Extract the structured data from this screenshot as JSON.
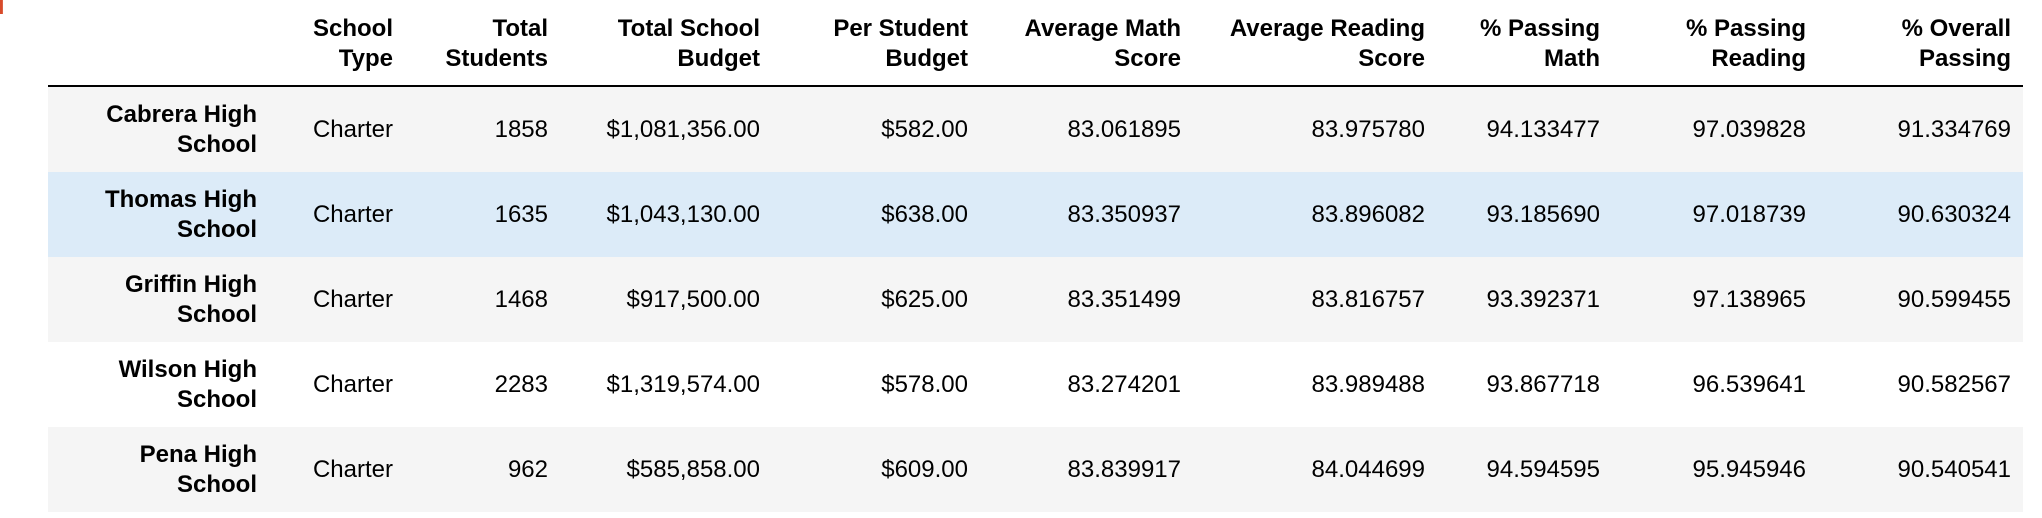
{
  "columns": [
    "",
    "School\nType",
    "Total\nStudents",
    "Total School\nBudget",
    "Per Student\nBudget",
    "Average Math\nScore",
    "Average Reading\nScore",
    "% Passing\nMath",
    "% Passing\nReading",
    "% Overall\nPassing"
  ],
  "rows": [
    {
      "school": "Cabrera High\nSchool",
      "type": "Charter",
      "total_students": "1858",
      "total_budget": "$1,081,356.00",
      "per_student_budget": "$582.00",
      "avg_math": "83.061895",
      "avg_reading": "83.975780",
      "pct_math": "94.133477",
      "pct_reading": "97.039828",
      "pct_overall": "91.334769"
    },
    {
      "school": "Thomas High\nSchool",
      "type": "Charter",
      "total_students": "1635",
      "total_budget": "$1,043,130.00",
      "per_student_budget": "$638.00",
      "avg_math": "83.350937",
      "avg_reading": "83.896082",
      "pct_math": "93.185690",
      "pct_reading": "97.018739",
      "pct_overall": "90.630324"
    },
    {
      "school": "Griffin High\nSchool",
      "type": "Charter",
      "total_students": "1468",
      "total_budget": "$917,500.00",
      "per_student_budget": "$625.00",
      "avg_math": "83.351499",
      "avg_reading": "83.816757",
      "pct_math": "93.392371",
      "pct_reading": "97.138965",
      "pct_overall": "90.599455"
    },
    {
      "school": "Wilson High\nSchool",
      "type": "Charter",
      "total_students": "2283",
      "total_budget": "$1,319,574.00",
      "per_student_budget": "$578.00",
      "avg_math": "83.274201",
      "avg_reading": "83.989488",
      "pct_math": "93.867718",
      "pct_reading": "96.539641",
      "pct_overall": "90.582567"
    },
    {
      "school": "Pena High\nSchool",
      "type": "Charter",
      "total_students": "962",
      "total_budget": "$585,858.00",
      "per_student_budget": "$609.00",
      "avg_math": "83.839917",
      "avg_reading": "84.044699",
      "pct_math": "94.594595",
      "pct_reading": "95.945946",
      "pct_overall": "90.540541"
    }
  ],
  "hovered_row_index": 1,
  "colors": {
    "odd_row": "#f5f5f5",
    "even_row": "#ffffff",
    "hover_row": "#dcebf8",
    "prompt_marker": "#d84a2a"
  }
}
